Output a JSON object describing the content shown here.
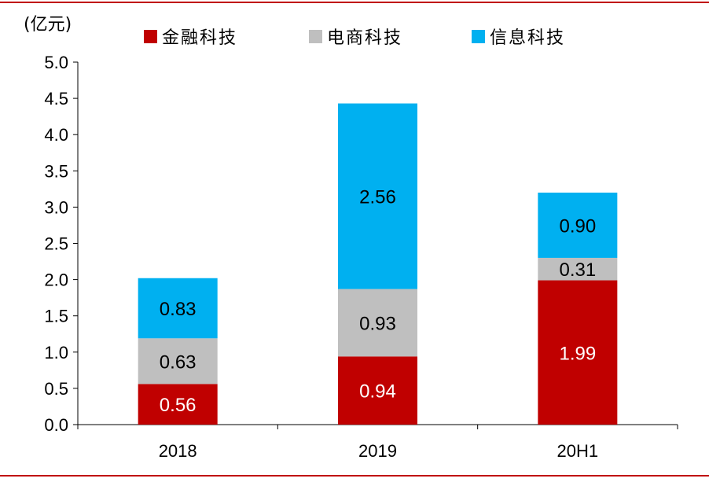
{
  "chart_data": {
    "type": "bar",
    "stacked": true,
    "unit_label": "(亿元)",
    "categories": [
      "2018",
      "2019",
      "20H1"
    ],
    "series": [
      {
        "name": "金融科技",
        "color": "#c00000",
        "label_color": "#ffffff",
        "values": [
          0.56,
          0.94,
          1.99
        ],
        "labels": [
          "0.56",
          "0.94",
          "1.99"
        ]
      },
      {
        "name": "电商科技",
        "color": "#bfbfbf",
        "label_color": "#000000",
        "values": [
          0.63,
          0.93,
          0.31
        ],
        "labels": [
          "0.63",
          "0.93",
          "0.31"
        ]
      },
      {
        "name": "信息科技",
        "color": "#00b0f0",
        "label_color": "#000000",
        "values": [
          0.83,
          2.56,
          0.9
        ],
        "labels": [
          "0.83",
          "2.56",
          "0.90"
        ]
      }
    ],
    "ylim": [
      0,
      5.0
    ],
    "yticks": [
      "0.0",
      "0.5",
      "1.0",
      "1.5",
      "2.0",
      "2.5",
      "3.0",
      "3.5",
      "4.0",
      "4.5",
      "5.0"
    ],
    "legend_position": "top",
    "grid": false
  },
  "frame_color": "#c00000"
}
